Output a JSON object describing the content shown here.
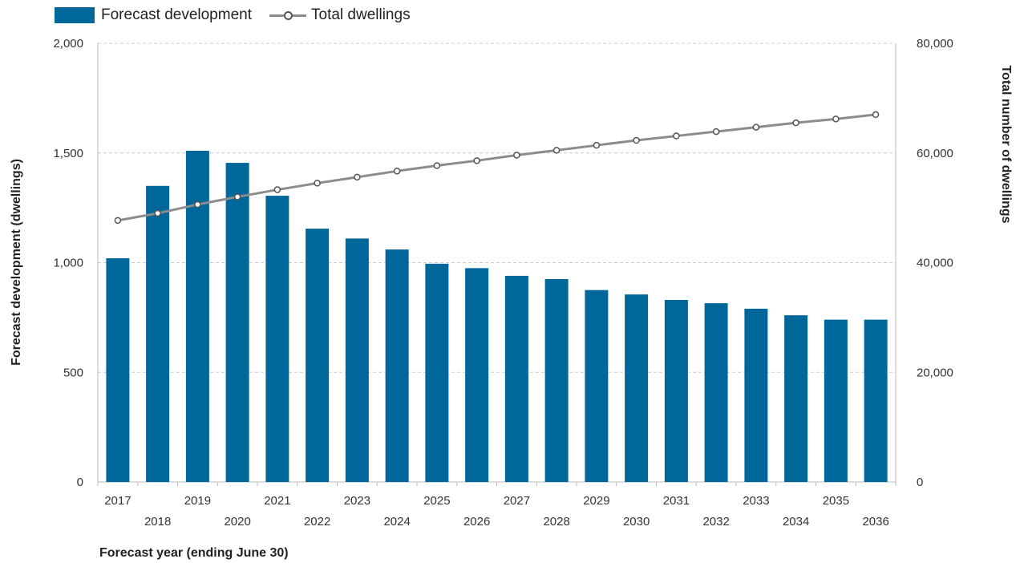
{
  "legend": {
    "bars_label": "Forecast development",
    "line_label": "Total dwellings"
  },
  "colors": {
    "bar": "#00679a",
    "line": "#8c8c8c",
    "marker_stroke": "#555555",
    "grid": "#cccccc"
  },
  "chart_data": {
    "type": "bar",
    "title": "",
    "xlabel": "Forecast year (ending June 30)",
    "ylabel": "Forecast development (dwellings)",
    "y2label": "Total number of dwellings",
    "categories": [
      "2017",
      "2018",
      "2019",
      "2020",
      "2021",
      "2022",
      "2023",
      "2024",
      "2025",
      "2026",
      "2027",
      "2028",
      "2029",
      "2030",
      "2031",
      "2032",
      "2033",
      "2034",
      "2035",
      "2036"
    ],
    "ylim": [
      0,
      2000
    ],
    "yticks": [
      "0",
      "500",
      "1,000",
      "1,500",
      "2,000"
    ],
    "y2lim": [
      0,
      80000
    ],
    "y2ticks": [
      "0",
      "20,000",
      "40,000",
      "60,000",
      "80,000"
    ],
    "grid": true,
    "legend_position": "top-left",
    "series": [
      {
        "name": "Forecast development",
        "type": "bar",
        "axis": "left",
        "values": [
          1020,
          1350,
          1510,
          1455,
          1305,
          1155,
          1110,
          1060,
          995,
          975,
          940,
          925,
          875,
          855,
          830,
          815,
          790,
          760,
          740,
          740
        ]
      },
      {
        "name": "Total dwellings",
        "type": "line",
        "axis": "right",
        "values": [
          47700,
          49000,
          50600,
          52000,
          53300,
          54500,
          55600,
          56700,
          57700,
          58600,
          59600,
          60500,
          61400,
          62300,
          63100,
          63900,
          64700,
          65500,
          66200,
          67000
        ]
      }
    ]
  }
}
